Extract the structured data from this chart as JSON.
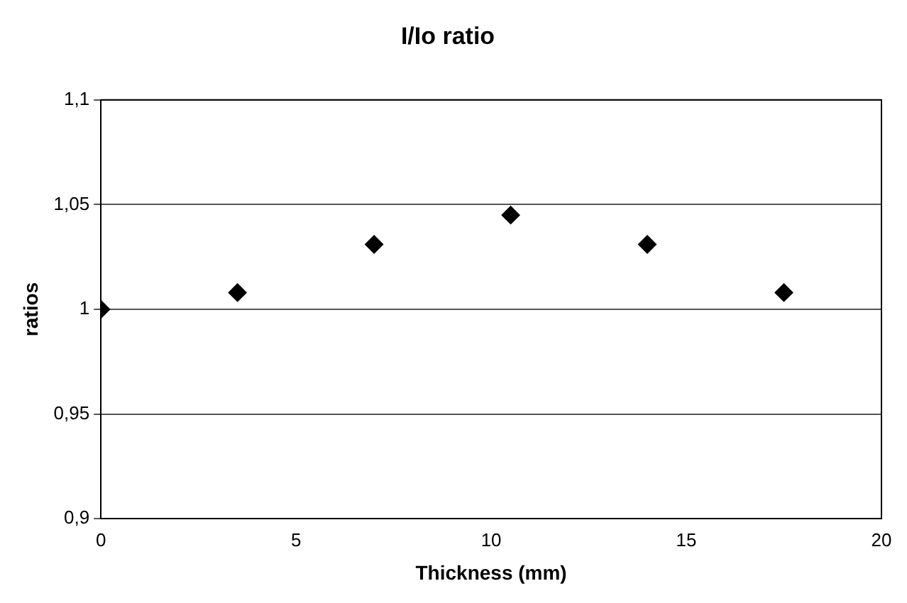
{
  "chart_data": {
    "type": "scatter",
    "title": "I/Io ratio",
    "xlabel": "Thickness (mm)",
    "ylabel": "ratios",
    "x": [
      0,
      3.5,
      7,
      10.5,
      14,
      17.5
    ],
    "series": [
      {
        "color": "#000000",
        "values": [
          1.0,
          1.008,
          1.031,
          1.045,
          1.031,
          1.008
        ]
      }
    ],
    "xlim": [
      0,
      20
    ],
    "xticks": [
      0,
      5,
      10,
      15,
      20
    ],
    "ylim": [
      0.9,
      1.1
    ],
    "yticks": [
      {
        "value": 0.9,
        "label": "0,9"
      },
      {
        "value": 0.95,
        "label": "0,95"
      },
      {
        "value": 1,
        "label": "1"
      },
      {
        "value": 1.05,
        "label": "1,05"
      },
      {
        "value": 1.1,
        "label": "1,1"
      }
    ],
    "grid": "y",
    "marker": "diamond",
    "legend": false
  }
}
